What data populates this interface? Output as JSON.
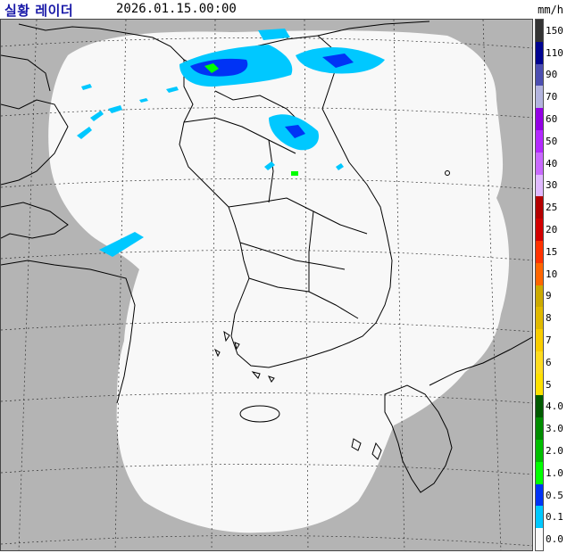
{
  "header": {
    "title": "실황 레이더",
    "timestamp": "2026.01.15.00:00",
    "unit": "mm/h"
  },
  "legend": {
    "levels": [
      {
        "label": "150",
        "color": "#333333"
      },
      {
        "label": "110",
        "color": "#000390"
      },
      {
        "label": "90",
        "color": "#4c4eb1"
      },
      {
        "label": "70",
        "color": "#b3b4de"
      },
      {
        "label": "60",
        "color": "#9300e4"
      },
      {
        "label": "50",
        "color": "#b329ff"
      },
      {
        "label": "40",
        "color": "#c969ff"
      },
      {
        "label": "30",
        "color": "#e0b9ff"
      },
      {
        "label": "25",
        "color": "#b40000"
      },
      {
        "label": "20",
        "color": "#d20000"
      },
      {
        "label": "15",
        "color": "#ff3200"
      },
      {
        "label": "10",
        "color": "#ff6600"
      },
      {
        "label": "9",
        "color": "#ccaa00"
      },
      {
        "label": "8",
        "color": "#e0b900"
      },
      {
        "label": "7",
        "color": "#f9cd00"
      },
      {
        "label": "6",
        "color": "#ffdc1f"
      },
      {
        "label": "5",
        "color": "#ffe100"
      },
      {
        "label": "4.0",
        "color": "#005a00"
      },
      {
        "label": "3.0",
        "color": "#008c00"
      },
      {
        "label": "2.0",
        "color": "#00be00"
      },
      {
        "label": "1.0",
        "color": "#00ff00"
      },
      {
        "label": "0.5",
        "color": "#0033f5"
      },
      {
        "label": "0.1",
        "color": "#00c8ff"
      },
      {
        "label": "0.0",
        "color": "#fafafa"
      }
    ]
  },
  "map": {
    "land_color": "#b4b4b4",
    "coverage_color": "#f8f8f8",
    "grid_color": "#333333",
    "coast_color": "#000000"
  }
}
